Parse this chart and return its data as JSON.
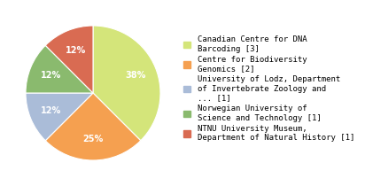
{
  "legend_labels": [
    "Canadian Centre for DNA\nBarcoding [3]",
    "Centre for Biodiversity\nGenomics [2]",
    "University of Lodz, Department\nof Invertebrate Zoology and\n... [1]",
    "Norwegian University of\nScience and Technology [1]",
    "NTNU University Museum,\nDepartment of Natural History [1]"
  ],
  "values": [
    3,
    2,
    1,
    1,
    1
  ],
  "colors": [
    "#d4e57a",
    "#f5a050",
    "#aabcd8",
    "#8aba6e",
    "#d96b52"
  ],
  "startangle": 90,
  "background_color": "#ffffff",
  "pct_color": "#ffffff",
  "pct_fontsize": 7,
  "legend_fontsize": 6.5
}
